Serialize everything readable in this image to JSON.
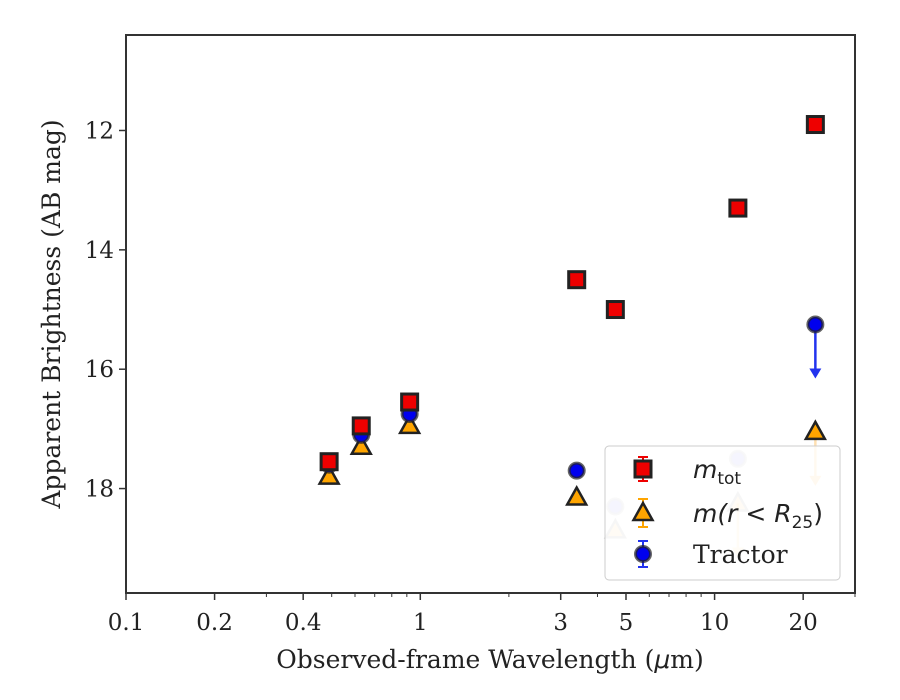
{
  "chart_data": {
    "type": "scatter",
    "xlabel": "Observed-frame Wavelength (μm)",
    "ylabel": "Apparent Brightness (AB mag)",
    "xscale": "log",
    "xlim": [
      0.1,
      30
    ],
    "ylim": [
      19.75,
      10.4
    ],
    "y_inverted": true,
    "x_ticks": [
      0.1,
      0.2,
      0.4,
      1,
      3,
      5,
      10,
      20
    ],
    "x_tick_labels": [
      "0.1",
      "0.2",
      "0.4",
      "1",
      "3",
      "5",
      "10",
      "20"
    ],
    "y_ticks": [
      12,
      14,
      16,
      18
    ],
    "y_tick_labels": [
      "12",
      "14",
      "16",
      "18"
    ],
    "grid": false,
    "legend_position": "lower-right",
    "series": [
      {
        "key": "mtot",
        "legend": {
          "main": "m",
          "sub": "tot",
          "rest": ""
        },
        "marker": "square",
        "color": "#ee0000",
        "edge": "#222222",
        "points": [
          {
            "x": 0.49,
            "y": 17.55
          },
          {
            "x": 0.63,
            "y": 16.95
          },
          {
            "x": 0.92,
            "y": 16.55
          },
          {
            "x": 3.4,
            "y": 14.5
          },
          {
            "x": 4.6,
            "y": 15.0
          },
          {
            "x": 12.0,
            "y": 13.3
          },
          {
            "x": 22.0,
            "y": 11.9
          }
        ]
      },
      {
        "key": "mr25",
        "legend": {
          "main": "m(r < R",
          "sub": "25",
          "rest": ")"
        },
        "marker": "triangle",
        "color": "#ffa500",
        "edge": "#222222",
        "points": [
          {
            "x": 0.49,
            "y": 17.8
          },
          {
            "x": 0.63,
            "y": 17.3
          },
          {
            "x": 0.92,
            "y": 16.95
          },
          {
            "x": 3.4,
            "y": 18.15
          },
          {
            "x": 4.6,
            "y": 18.7,
            "faded": true
          },
          {
            "x": 12.0,
            "y": 18.25,
            "faded": true,
            "upper_limit": true
          },
          {
            "x": 22.0,
            "y": 17.05,
            "upper_limit": true
          }
        ]
      },
      {
        "key": "tractor",
        "legend": {
          "main": "Tractor",
          "sub": "",
          "rest": ""
        },
        "marker": "circle",
        "color": "#0000ee",
        "edge": "#222222",
        "points": [
          {
            "x": 0.49,
            "y": 17.6
          },
          {
            "x": 0.63,
            "y": 17.1
          },
          {
            "x": 0.92,
            "y": 16.75
          },
          {
            "x": 3.4,
            "y": 17.7
          },
          {
            "x": 4.6,
            "y": 18.3,
            "faded": true
          },
          {
            "x": 12.0,
            "y": 17.5,
            "faded": true
          },
          {
            "x": 22.0,
            "y": 15.25,
            "upper_limit": true
          }
        ]
      }
    ]
  }
}
